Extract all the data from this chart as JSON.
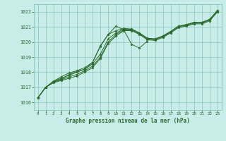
{
  "title": "Graphe pression niveau de la mer (hPa)",
  "hours": [
    0,
    1,
    2,
    3,
    4,
    5,
    6,
    7,
    8,
    9,
    10,
    11,
    12,
    13,
    14,
    15,
    16,
    17,
    18,
    19,
    20,
    21,
    22,
    23
  ],
  "ylim": [
    1015.5,
    1022.5
  ],
  "yticks": [
    1016,
    1017,
    1018,
    1019,
    1020,
    1021,
    1022
  ],
  "background_color": "#c8ece8",
  "grid_color": "#88c4bc",
  "line_color": "#2d6a2d",
  "line1": [
    1016.3,
    1017.0,
    1017.3,
    1017.45,
    1017.6,
    1017.75,
    1018.0,
    1018.3,
    1018.9,
    1019.9,
    1020.4,
    1020.75,
    1020.75,
    1020.5,
    1020.15,
    1020.1,
    1020.3,
    1020.6,
    1020.95,
    1021.05,
    1021.2,
    1021.2,
    1021.4,
    1022.0
  ],
  "line2": [
    1016.3,
    1017.0,
    1017.35,
    1017.5,
    1017.7,
    1017.85,
    1018.1,
    1018.4,
    1019.0,
    1020.0,
    1020.5,
    1020.8,
    1020.8,
    1020.55,
    1020.2,
    1020.15,
    1020.35,
    1020.65,
    1021.0,
    1021.1,
    1021.25,
    1021.25,
    1021.45,
    1022.05
  ],
  "line3": [
    1016.3,
    1017.0,
    1017.4,
    1017.6,
    1017.8,
    1018.0,
    1018.2,
    1018.55,
    1019.2,
    1020.2,
    1020.6,
    1020.85,
    1020.85,
    1020.6,
    1020.25,
    1020.2,
    1020.4,
    1020.7,
    1021.05,
    1021.15,
    1021.3,
    1021.3,
    1021.5,
    1022.1
  ],
  "line4": [
    1016.3,
    1017.0,
    1017.4,
    1017.7,
    1017.95,
    1018.1,
    1018.3,
    1018.65,
    1019.7,
    1020.5,
    1020.75,
    1020.9,
    1020.85,
    1020.6,
    1020.25,
    1020.2,
    1020.4,
    1020.7,
    1021.05,
    1021.15,
    1021.3,
    1021.3,
    1021.5,
    1022.1
  ],
  "line5_x": [
    0,
    1,
    2,
    3,
    4,
    5,
    6,
    7,
    8,
    9,
    10,
    11,
    12,
    13,
    14
  ],
  "line5": [
    1016.3,
    1017.0,
    1017.35,
    1017.55,
    1017.85,
    1018.05,
    1018.2,
    1018.65,
    1019.75,
    1020.5,
    1021.05,
    1020.8,
    1019.85,
    1019.6,
    1020.05
  ]
}
